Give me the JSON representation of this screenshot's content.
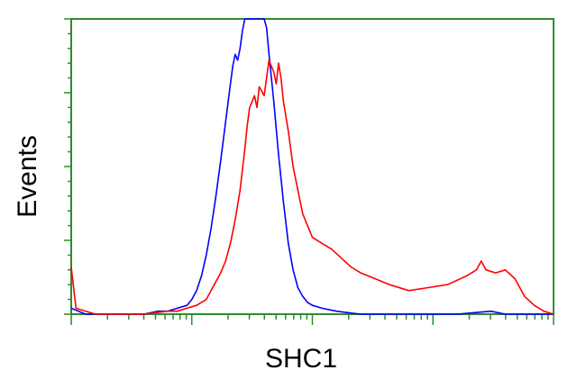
{
  "chart_data": {
    "type": "line",
    "title": "",
    "xlabel": "SHC1",
    "ylabel": "Events",
    "xlim": [
      0,
      1
    ],
    "ylim": [
      0,
      1
    ],
    "x_scale": "log",
    "grid": false,
    "legend": "none",
    "tick_labels": "none",
    "frame_color": "#2e8b2e",
    "series": [
      {
        "color": "#0000ff",
        "points": [
          [
            0.0,
            0.02
          ],
          [
            0.03,
            0.0
          ],
          [
            0.1,
            0.0
          ],
          [
            0.15,
            0.0
          ],
          [
            0.18,
            0.01
          ],
          [
            0.2,
            0.01
          ],
          [
            0.22,
            0.02
          ],
          [
            0.24,
            0.03
          ],
          [
            0.25,
            0.05
          ],
          [
            0.26,
            0.08
          ],
          [
            0.27,
            0.13
          ],
          [
            0.28,
            0.2
          ],
          [
            0.29,
            0.29
          ],
          [
            0.3,
            0.4
          ],
          [
            0.31,
            0.52
          ],
          [
            0.32,
            0.65
          ],
          [
            0.33,
            0.78
          ],
          [
            0.335,
            0.84
          ],
          [
            0.34,
            0.88
          ],
          [
            0.345,
            0.86
          ],
          [
            0.35,
            0.9
          ],
          [
            0.355,
            0.96
          ],
          [
            0.36,
            1.0
          ],
          [
            0.37,
            1.0
          ],
          [
            0.38,
            1.0
          ],
          [
            0.39,
            1.0
          ],
          [
            0.4,
            1.0
          ],
          [
            0.405,
            0.97
          ],
          [
            0.41,
            0.88
          ],
          [
            0.42,
            0.72
          ],
          [
            0.43,
            0.54
          ],
          [
            0.44,
            0.38
          ],
          [
            0.45,
            0.24
          ],
          [
            0.46,
            0.15
          ],
          [
            0.47,
            0.09
          ],
          [
            0.48,
            0.06
          ],
          [
            0.49,
            0.04
          ],
          [
            0.5,
            0.03
          ],
          [
            0.52,
            0.02
          ],
          [
            0.55,
            0.01
          ],
          [
            0.6,
            0.0
          ],
          [
            0.7,
            0.0
          ],
          [
            0.8,
            0.0
          ],
          [
            0.87,
            0.01
          ],
          [
            0.9,
            0.0
          ],
          [
            0.95,
            0.0
          ],
          [
            1.0,
            0.0
          ]
        ]
      },
      {
        "color": "#ff0000",
        "points": [
          [
            0.0,
            0.16
          ],
          [
            0.01,
            0.02
          ],
          [
            0.05,
            0.0
          ],
          [
            0.15,
            0.0
          ],
          [
            0.2,
            0.01
          ],
          [
            0.22,
            0.01
          ],
          [
            0.24,
            0.02
          ],
          [
            0.26,
            0.03
          ],
          [
            0.28,
            0.05
          ],
          [
            0.29,
            0.08
          ],
          [
            0.3,
            0.11
          ],
          [
            0.31,
            0.14
          ],
          [
            0.32,
            0.18
          ],
          [
            0.33,
            0.24
          ],
          [
            0.34,
            0.32
          ],
          [
            0.35,
            0.42
          ],
          [
            0.36,
            0.56
          ],
          [
            0.365,
            0.64
          ],
          [
            0.37,
            0.7
          ],
          [
            0.38,
            0.74
          ],
          [
            0.385,
            0.7
          ],
          [
            0.39,
            0.77
          ],
          [
            0.4,
            0.74
          ],
          [
            0.405,
            0.8
          ],
          [
            0.41,
            0.86
          ],
          [
            0.415,
            0.84
          ],
          [
            0.42,
            0.82
          ],
          [
            0.425,
            0.78
          ],
          [
            0.43,
            0.85
          ],
          [
            0.435,
            0.8
          ],
          [
            0.44,
            0.72
          ],
          [
            0.45,
            0.62
          ],
          [
            0.46,
            0.5
          ],
          [
            0.47,
            0.42
          ],
          [
            0.48,
            0.34
          ],
          [
            0.49,
            0.3
          ],
          [
            0.5,
            0.26
          ],
          [
            0.52,
            0.24
          ],
          [
            0.54,
            0.22
          ],
          [
            0.56,
            0.19
          ],
          [
            0.58,
            0.16
          ],
          [
            0.6,
            0.14
          ],
          [
            0.63,
            0.12
          ],
          [
            0.66,
            0.1
          ],
          [
            0.7,
            0.08
          ],
          [
            0.74,
            0.09
          ],
          [
            0.78,
            0.1
          ],
          [
            0.82,
            0.13
          ],
          [
            0.84,
            0.15
          ],
          [
            0.85,
            0.18
          ],
          [
            0.86,
            0.15
          ],
          [
            0.88,
            0.14
          ],
          [
            0.9,
            0.15
          ],
          [
            0.92,
            0.12
          ],
          [
            0.94,
            0.06
          ],
          [
            0.96,
            0.03
          ],
          [
            0.98,
            0.01
          ],
          [
            1.0,
            0.0
          ]
        ]
      }
    ]
  }
}
